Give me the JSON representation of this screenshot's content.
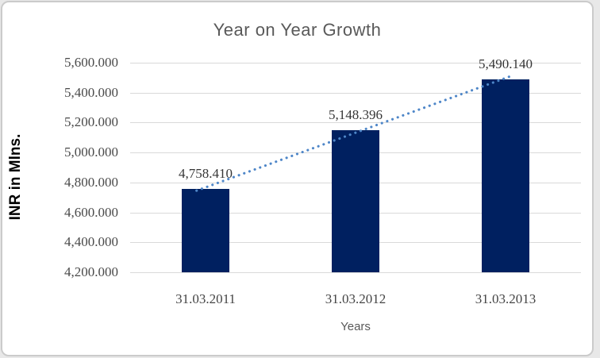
{
  "chart_data": {
    "type": "bar",
    "title": "Year on Year Growth",
    "categories": [
      "31.03.2011",
      "31.03.2012",
      "31.03.2013"
    ],
    "values": [
      4758.41,
      5148.396,
      5490.14
    ],
    "data_labels": [
      "4,758.410",
      "5,148.396",
      "5,490.140"
    ],
    "xlabel": "Years",
    "ylabel": "INR in Mlns.",
    "ylim": [
      4200,
      5600
    ],
    "ytick_step": 200,
    "ytick_labels": [
      "5,600.000",
      "5,400.000",
      "5,200.000",
      "5,000.000",
      "4,800.000",
      "4,600.000",
      "4,400.000",
      "4,200.000"
    ],
    "grid": true,
    "legend": "none",
    "trendline": {
      "type": "linear",
      "style": "dotted"
    }
  },
  "colors": {
    "bar": "#002060",
    "trendline": "#4e86c8",
    "gridline": "#d9d9d9",
    "title_text": "#595959",
    "axis_title_text": "#595959",
    "tick_text": "#4a4a4a",
    "category_text": "#454545",
    "data_label_text": "#363636",
    "frame_border": "#cbcbcb",
    "canvas": "#ffffff"
  }
}
